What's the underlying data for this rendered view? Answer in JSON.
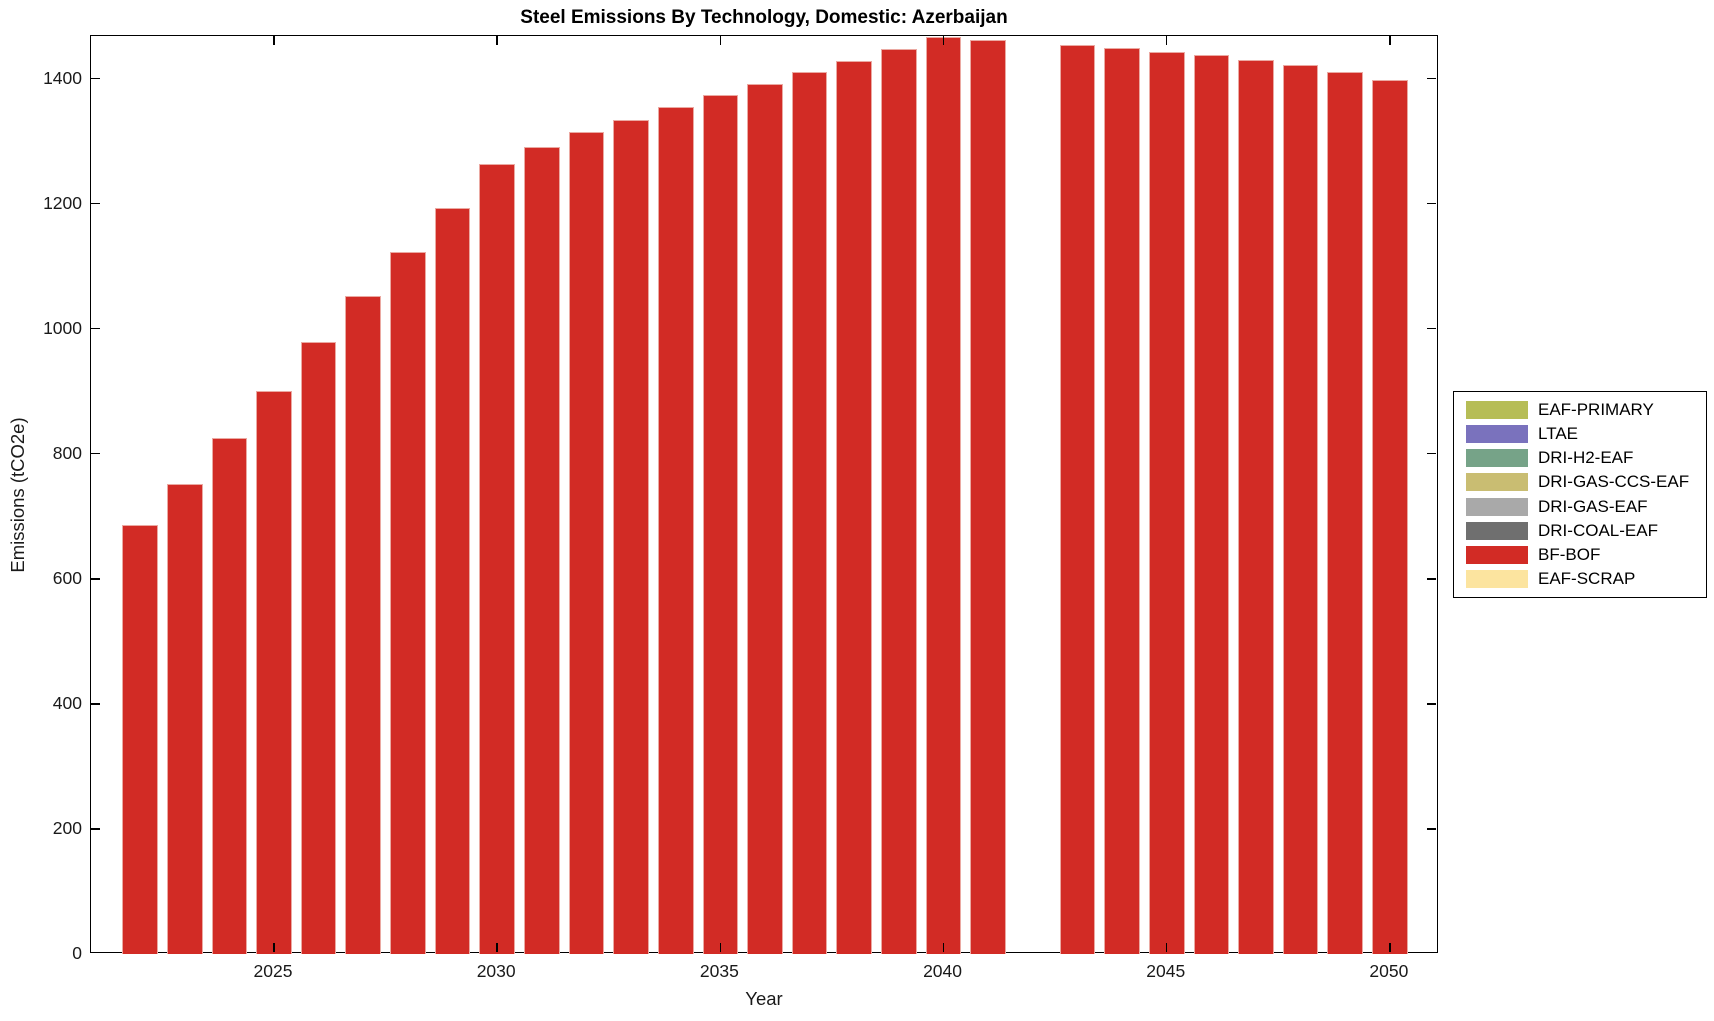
{
  "chart_data": {
    "type": "bar",
    "title": "Steel Emissions By Technology, Domestic: Azerbaijan",
    "xlabel": "Year",
    "ylabel": "Emissions (tCO2e)",
    "grid": false,
    "xlim": [
      2020.9,
      2051.1
    ],
    "ylim": [
      0,
      1468
    ],
    "x_ticks": [
      2025,
      2030,
      2035,
      2040,
      2045,
      2050
    ],
    "y_ticks": [
      0,
      200,
      400,
      600,
      800,
      1000,
      1200,
      1400
    ],
    "bar_color": "#d22b25",
    "bar_edge_color": "#eba9a2",
    "visible_series": "BF-BOF",
    "x": [
      2022,
      2023,
      2024,
      2025,
      2026,
      2027,
      2028,
      2029,
      2030,
      2031,
      2032,
      2033,
      2034,
      2035,
      2036,
      2037,
      2038,
      2039,
      2040,
      2041,
      2042,
      2043,
      2044,
      2045,
      2046,
      2047,
      2048,
      2049,
      2050
    ],
    "values": [
      686,
      752,
      825,
      901,
      978,
      1052,
      1122,
      1193,
      1264,
      1291,
      1314,
      1334,
      1354,
      1374,
      1392,
      1410,
      1428,
      1447,
      1466,
      1462,
      0,
      1454,
      1449,
      1443,
      1438,
      1429,
      1421,
      1410,
      1398
    ],
    "legend_position": "right-outside",
    "legend": [
      {
        "label": "EAF-PRIMARY",
        "color": "#b6bd56"
      },
      {
        "label": "LTAE",
        "color": "#7a72bd"
      },
      {
        "label": "DRI-H2-EAF",
        "color": "#76a388"
      },
      {
        "label": "DRI-GAS-CCS-EAF",
        "color": "#c9bd72"
      },
      {
        "label": "DRI-GAS-EAF",
        "color": "#a9a9a9"
      },
      {
        "label": "DRI-COAL-EAF",
        "color": "#6f6f6f"
      },
      {
        "label": "BF-BOF",
        "color": "#d22b25"
      },
      {
        "label": "EAF-SCRAP",
        "color": "#fce49f"
      }
    ]
  }
}
